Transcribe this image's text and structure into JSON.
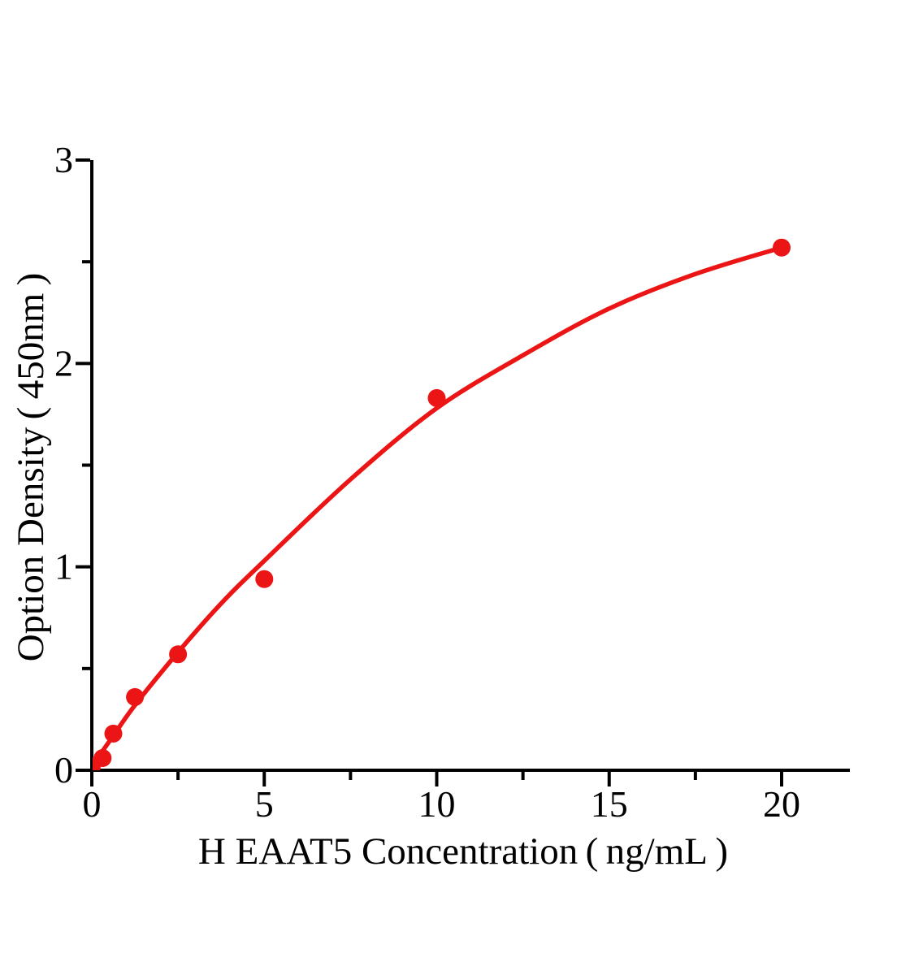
{
  "chart_data": {
    "type": "scatter",
    "title": "",
    "xlabel": "H EAAT5 Concentration（ng/mL）",
    "ylabel": "Option Density（450nm）",
    "xlim": [
      0,
      22
    ],
    "ylim": [
      0,
      3
    ],
    "x_major_ticks": [
      0,
      5,
      10,
      15,
      20
    ],
    "x_minor_ticks": [
      2.5,
      7.5,
      12.5,
      17.5
    ],
    "y_major_ticks": [
      0,
      1,
      2,
      3
    ],
    "y_minor_ticks": [
      0.5,
      1.5,
      2.5
    ],
    "grid": false,
    "legend": "none",
    "series": [
      {
        "name": "standard-points",
        "type": "scatter",
        "color": "#ec1515",
        "marker": "circle",
        "x": [
          0,
          0.3125,
          0.625,
          1.25,
          2.5,
          5,
          10,
          20
        ],
        "y": [
          0.02,
          0.06,
          0.18,
          0.36,
          0.57,
          0.94,
          1.83,
          2.57
        ]
      },
      {
        "name": "fitted-curve",
        "type": "line",
        "color": "#ec1515",
        "points": [
          [
            0,
            0.02
          ],
          [
            0.625,
            0.17
          ],
          [
            1.25,
            0.32
          ],
          [
            2.5,
            0.58
          ],
          [
            3.75,
            0.82
          ],
          [
            5,
            1.03
          ],
          [
            7.5,
            1.43
          ],
          [
            10,
            1.78
          ],
          [
            12.5,
            2.04
          ],
          [
            15,
            2.27
          ],
          [
            17.5,
            2.44
          ],
          [
            20,
            2.57
          ]
        ]
      }
    ],
    "colors": {
      "accent": "#ec1515",
      "axis": "#000000",
      "background": "#ffffff"
    }
  }
}
